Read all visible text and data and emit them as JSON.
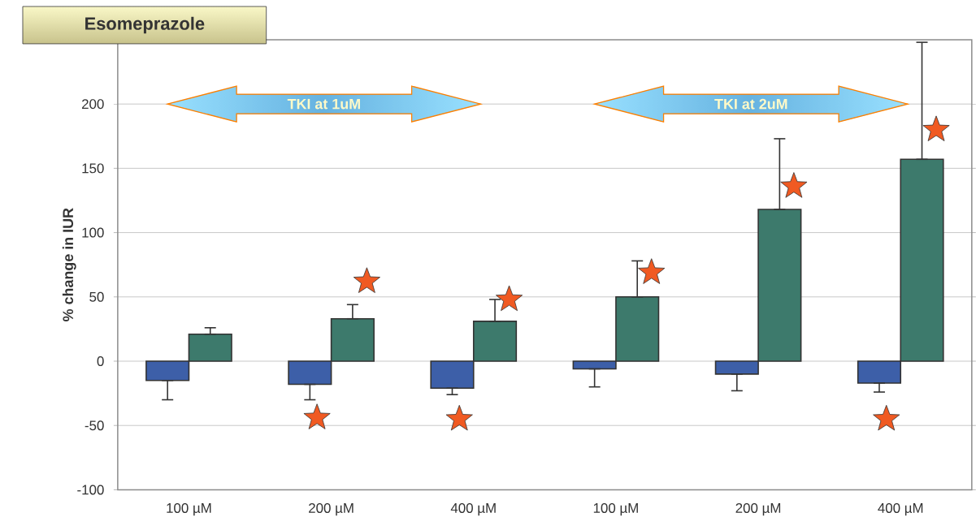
{
  "chart_data": {
    "type": "bar",
    "title": "Esomeprazole",
    "ylabel": "% change in IUR",
    "categories": [
      "100 µM",
      "200 µM",
      "400 µM",
      "100 µM",
      "200 µM",
      "400 µM"
    ],
    "series": [
      {
        "color": "#3d5fa8",
        "values": [
          -15,
          -18,
          -21,
          -6,
          -10,
          -17
        ],
        "errors": [
          [
            -30,
            -15
          ],
          [
            -30,
            -18
          ],
          [
            -26,
            -21
          ],
          [
            -20,
            -6
          ],
          [
            -23,
            -10
          ],
          [
            -24,
            -17
          ]
        ]
      },
      {
        "color": "#3d7a6c",
        "values": [
          21,
          33,
          31,
          50,
          118,
          157
        ],
        "errors": [
          [
            21,
            26
          ],
          [
            33,
            44
          ],
          [
            31,
            48
          ],
          [
            50,
            78
          ],
          [
            118,
            173
          ],
          [
            157,
            248
          ]
        ]
      },
      {
        "type": "scatter",
        "marker": "star",
        "color": "#f05a22",
        "values": [
          null,
          -44,
          -45,
          null,
          null,
          -45
        ]
      },
      {
        "type": "scatter",
        "marker": "star",
        "color": "#f05a22",
        "values": [
          null,
          62,
          48,
          69,
          136,
          180
        ]
      }
    ],
    "ylim": [
      -100,
      250
    ],
    "yticks": [
      -100,
      -50,
      0,
      50,
      100,
      150,
      200
    ],
    "grid": "y",
    "annotations": [
      "TKI at 1uM",
      "TKI at 2uM"
    ]
  }
}
